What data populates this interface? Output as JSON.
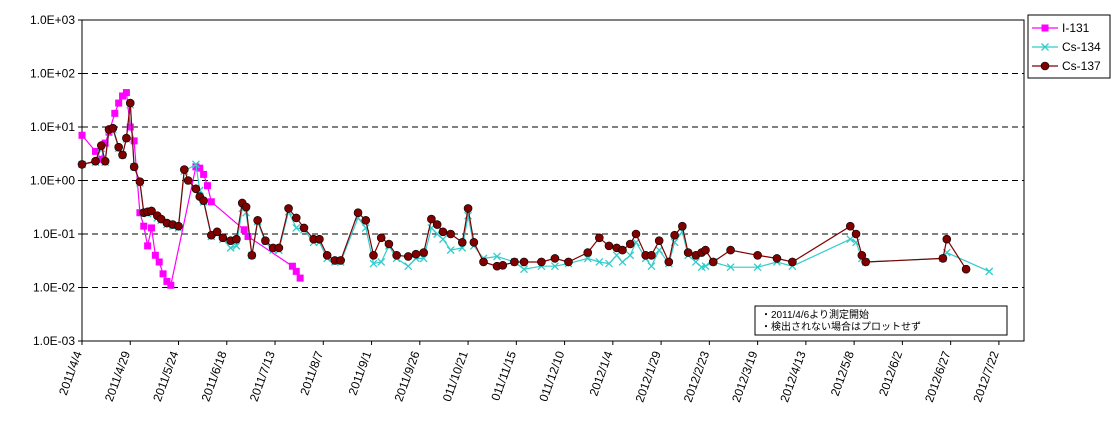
{
  "chart_data": {
    "type": "line",
    "title": "",
    "xlabel": "",
    "ylabel": "",
    "y_scale": "log",
    "ylim": [
      0.001,
      1000
    ],
    "xlim": [
      "2011-04-04",
      "2012-08-04"
    ],
    "y_tick_labels": [
      "1.0E+03",
      "1.0E+02",
      "1.0E+01",
      "1.0E+00",
      "1.0E-01",
      "1.0E-02",
      "1.0E-03"
    ],
    "y_tick_values": [
      1000,
      100,
      10,
      1,
      0.1,
      0.01,
      0.001
    ],
    "x_ticks": [
      {
        "date": "2011-04-04",
        "label": "2011/4/4"
      },
      {
        "date": "2011-04-29",
        "label": "2011/4/29"
      },
      {
        "date": "2011-05-24",
        "label": "2011/5/24"
      },
      {
        "date": "2011-06-18",
        "label": "2011/6/18"
      },
      {
        "date": "2011-07-13",
        "label": "2011/7/13"
      },
      {
        "date": "2011-08-07",
        "label": "2011/8/7"
      },
      {
        "date": "2011-09-01",
        "label": "2011/9/1"
      },
      {
        "date": "2011-09-26",
        "label": "2011/9/26"
      },
      {
        "date": "2011-10-21",
        "label": "011/10/21"
      },
      {
        "date": "2011-11-15",
        "label": "011/11/15"
      },
      {
        "date": "2011-12-10",
        "label": "011/12/10"
      },
      {
        "date": "2012-01-04",
        "label": "2012/1/4"
      },
      {
        "date": "2012-01-29",
        "label": "2012/1/29"
      },
      {
        "date": "2012-02-23",
        "label": "2012/2/23"
      },
      {
        "date": "2012-03-19",
        "label": "2012/3/19"
      },
      {
        "date": "2012-04-13",
        "label": "2012/4/13"
      },
      {
        "date": "2012-05-08",
        "label": "2012/5/8"
      },
      {
        "date": "2012-06-02",
        "label": "2012/6/2"
      },
      {
        "date": "2012-06-27",
        "label": "2012/6/27"
      },
      {
        "date": "2012-07-22",
        "label": "2012/7/22"
      }
    ],
    "grid": {
      "horizontal": true,
      "style": "dashed"
    },
    "legend": {
      "position": "right-top"
    },
    "annotations": [
      "・2011/4/6より測定開始",
      "・検出されない場合はプロットせず"
    ],
    "series": [
      {
        "name": "I-131",
        "color": "#ff00ff",
        "marker": "square",
        "points": [
          [
            "2011-04-04",
            7.0
          ],
          [
            "2011-04-11",
            3.5
          ],
          [
            "2011-04-14",
            2.5
          ],
          [
            "2011-04-16",
            5.0
          ],
          [
            "2011-04-18",
            8.0
          ],
          [
            "2011-04-21",
            18.0
          ],
          [
            "2011-04-23",
            28.0
          ],
          [
            "2011-04-25",
            38.0
          ],
          [
            "2011-04-27",
            44.0
          ],
          [
            "2011-04-29",
            10.0
          ],
          [
            "2011-05-01",
            5.5
          ],
          [
            "2011-05-04",
            0.25
          ],
          [
            "2011-05-06",
            0.14
          ],
          [
            "2011-05-08",
            0.06
          ],
          [
            "2011-05-10",
            0.13
          ],
          [
            "2011-05-12",
            0.04
          ],
          [
            "2011-05-14",
            0.03
          ],
          [
            "2011-05-16",
            0.018
          ],
          [
            "2011-05-18",
            0.013
          ],
          [
            "2011-05-20",
            0.011
          ],
          [
            "2011-06-02",
            1.8
          ],
          [
            "2011-06-04",
            1.7
          ],
          [
            "2011-06-06",
            1.3
          ],
          [
            "2011-06-08",
            0.8
          ],
          [
            "2011-06-10",
            0.4
          ],
          [
            "2011-06-27",
            0.12
          ],
          [
            "2011-06-29",
            0.09
          ],
          [
            "2011-07-22",
            0.025
          ],
          [
            "2011-07-24",
            0.02
          ],
          [
            "2011-07-26",
            0.015
          ]
        ]
      },
      {
        "name": "Cs-134",
        "color": "#33cccc",
        "marker": "x",
        "points": [
          [
            "2011-04-04",
            2.0
          ],
          [
            "2011-04-11",
            2.2
          ],
          [
            "2011-04-14",
            4.0
          ],
          [
            "2011-04-16",
            2.2
          ],
          [
            "2011-04-18",
            8.5
          ],
          [
            "2011-04-20",
            9.0
          ],
          [
            "2011-04-23",
            4.0
          ],
          [
            "2011-04-25",
            3.0
          ],
          [
            "2011-04-27",
            6.0
          ],
          [
            "2011-04-29",
            26.0
          ],
          [
            "2011-05-01",
            1.8
          ],
          [
            "2011-05-04",
            0.9
          ],
          [
            "2011-05-06",
            0.25
          ],
          [
            "2011-05-08",
            0.24
          ],
          [
            "2011-05-10",
            0.25
          ],
          [
            "2011-05-13",
            0.2
          ],
          [
            "2011-05-15",
            0.18
          ],
          [
            "2011-05-18",
            0.15
          ],
          [
            "2011-05-21",
            0.14
          ],
          [
            "2011-05-24",
            0.13
          ],
          [
            "2011-05-27",
            1.5
          ],
          [
            "2011-06-02",
            2.0
          ],
          [
            "2011-06-04",
            0.65
          ],
          [
            "2011-06-06",
            0.4
          ],
          [
            "2011-06-10",
            0.09
          ],
          [
            "2011-06-13",
            0.1
          ],
          [
            "2011-06-16",
            0.08
          ],
          [
            "2011-06-20",
            0.055
          ],
          [
            "2011-06-23",
            0.06
          ],
          [
            "2011-06-26",
            0.3
          ],
          [
            "2011-06-28",
            0.25
          ],
          [
            "2011-07-01",
            0.04
          ],
          [
            "2011-07-04",
            0.17
          ],
          [
            "2011-07-08",
            0.07
          ],
          [
            "2011-07-12",
            0.05
          ],
          [
            "2011-07-15",
            0.05
          ],
          [
            "2011-07-20",
            0.26
          ],
          [
            "2011-07-24",
            0.13
          ],
          [
            "2011-07-28",
            0.12
          ],
          [
            "2011-08-02",
            0.07
          ],
          [
            "2011-08-05",
            0.07
          ],
          [
            "2011-08-09",
            0.035
          ],
          [
            "2011-08-13",
            0.03
          ],
          [
            "2011-08-16",
            0.03
          ],
          [
            "2011-08-25",
            0.2
          ],
          [
            "2011-08-29",
            0.13
          ],
          [
            "2011-09-02",
            0.028
          ],
          [
            "2011-09-06",
            0.03
          ],
          [
            "2011-09-10",
            0.06
          ],
          [
            "2011-09-14",
            0.035
          ],
          [
            "2011-09-20",
            0.025
          ],
          [
            "2011-09-24",
            0.035
          ],
          [
            "2011-09-28",
            0.035
          ],
          [
            "2011-10-02",
            0.13
          ],
          [
            "2011-10-05",
            0.1
          ],
          [
            "2011-10-08",
            0.08
          ],
          [
            "2011-10-12",
            0.05
          ],
          [
            "2011-10-18",
            0.055
          ],
          [
            "2011-10-21",
            0.22
          ],
          [
            "2011-10-24",
            0.06
          ],
          [
            "2011-10-29",
            0.035
          ],
          [
            "2011-11-05",
            0.038
          ],
          [
            "2011-11-14",
            0.03
          ],
          [
            "2011-11-19",
            0.022
          ],
          [
            "2011-11-28",
            0.025
          ],
          [
            "2011-12-05",
            0.025
          ],
          [
            "2011-12-12",
            0.028
          ],
          [
            "2011-12-22",
            0.035
          ],
          [
            "2011-12-28",
            0.03
          ],
          [
            "2012-01-02",
            0.028
          ],
          [
            "2012-01-06",
            0.04
          ],
          [
            "2012-01-09",
            0.03
          ],
          [
            "2012-01-13",
            0.04
          ],
          [
            "2012-01-16",
            0.07
          ],
          [
            "2012-01-21",
            0.035
          ],
          [
            "2012-01-24",
            0.025
          ],
          [
            "2012-01-28",
            0.05
          ],
          [
            "2012-02-02",
            0.028
          ],
          [
            "2012-02-05",
            0.07
          ],
          [
            "2012-02-09",
            0.11
          ],
          [
            "2012-02-12",
            0.04
          ],
          [
            "2012-02-16",
            0.03
          ],
          [
            "2012-02-19",
            0.024
          ],
          [
            "2012-02-21",
            0.025
          ],
          [
            "2012-02-25",
            0.03
          ],
          [
            "2012-03-05",
            0.024
          ],
          [
            "2012-03-19",
            0.024
          ],
          [
            "2012-03-29",
            0.03
          ],
          [
            "2012-04-06",
            0.025
          ],
          [
            "2012-05-06",
            0.08
          ],
          [
            "2012-05-09",
            0.07
          ],
          [
            "2012-05-12",
            0.035
          ],
          [
            "2012-05-14",
            0.03
          ],
          [
            "2012-06-23",
            0.035
          ],
          [
            "2012-06-25",
            0.045
          ],
          [
            "2012-07-17",
            0.02
          ]
        ]
      },
      {
        "name": "Cs-137",
        "color": "#800000",
        "marker": "circle",
        "points": [
          [
            "2011-04-04",
            2.0
          ],
          [
            "2011-04-11",
            2.3
          ],
          [
            "2011-04-14",
            4.5
          ],
          [
            "2011-04-16",
            2.3
          ],
          [
            "2011-04-18",
            9.0
          ],
          [
            "2011-04-20",
            9.5
          ],
          [
            "2011-04-23",
            4.2
          ],
          [
            "2011-04-25",
            3.0
          ],
          [
            "2011-04-27",
            6.2
          ],
          [
            "2011-04-29",
            28.0
          ],
          [
            "2011-05-01",
            1.8
          ],
          [
            "2011-05-04",
            0.95
          ],
          [
            "2011-05-06",
            0.25
          ],
          [
            "2011-05-08",
            0.26
          ],
          [
            "2011-05-10",
            0.27
          ],
          [
            "2011-05-13",
            0.22
          ],
          [
            "2011-05-15",
            0.19
          ],
          [
            "2011-05-18",
            0.16
          ],
          [
            "2011-05-21",
            0.15
          ],
          [
            "2011-05-24",
            0.14
          ],
          [
            "2011-05-27",
            1.6
          ],
          [
            "2011-05-29",
            1.0
          ],
          [
            "2011-06-02",
            0.7
          ],
          [
            "2011-06-04",
            0.5
          ],
          [
            "2011-06-06",
            0.42
          ],
          [
            "2011-06-10",
            0.095
          ],
          [
            "2011-06-13",
            0.11
          ],
          [
            "2011-06-16",
            0.085
          ],
          [
            "2011-06-20",
            0.075
          ],
          [
            "2011-06-23",
            0.08
          ],
          [
            "2011-06-26",
            0.38
          ],
          [
            "2011-06-28",
            0.32
          ],
          [
            "2011-07-01",
            0.04
          ],
          [
            "2011-07-04",
            0.18
          ],
          [
            "2011-07-08",
            0.075
          ],
          [
            "2011-07-12",
            0.055
          ],
          [
            "2011-07-15",
            0.055
          ],
          [
            "2011-07-20",
            0.3
          ],
          [
            "2011-07-24",
            0.2
          ],
          [
            "2011-07-28",
            0.13
          ],
          [
            "2011-08-02",
            0.08
          ],
          [
            "2011-08-05",
            0.08
          ],
          [
            "2011-08-09",
            0.04
          ],
          [
            "2011-08-13",
            0.032
          ],
          [
            "2011-08-16",
            0.032
          ],
          [
            "2011-08-25",
            0.25
          ],
          [
            "2011-08-29",
            0.18
          ],
          [
            "2011-09-02",
            0.04
          ],
          [
            "2011-09-06",
            0.085
          ],
          [
            "2011-09-10",
            0.065
          ],
          [
            "2011-09-14",
            0.04
          ],
          [
            "2011-09-20",
            0.038
          ],
          [
            "2011-09-24",
            0.042
          ],
          [
            "2011-09-28",
            0.045
          ],
          [
            "2011-10-02",
            0.19
          ],
          [
            "2011-10-05",
            0.15
          ],
          [
            "2011-10-08",
            0.11
          ],
          [
            "2011-10-12",
            0.1
          ],
          [
            "2011-10-18",
            0.07
          ],
          [
            "2011-10-21",
            0.3
          ],
          [
            "2011-10-24",
            0.07
          ],
          [
            "2011-10-29",
            0.03
          ],
          [
            "2011-11-05",
            0.025
          ],
          [
            "2011-11-08",
            0.026
          ],
          [
            "2011-11-14",
            0.03
          ],
          [
            "2011-11-19",
            0.03
          ],
          [
            "2011-11-28",
            0.03
          ],
          [
            "2011-12-05",
            0.035
          ],
          [
            "2011-12-12",
            0.03
          ],
          [
            "2011-12-22",
            0.045
          ],
          [
            "2011-12-28",
            0.085
          ],
          [
            "2012-01-02",
            0.06
          ],
          [
            "2012-01-06",
            0.055
          ],
          [
            "2012-01-09",
            0.05
          ],
          [
            "2012-01-13",
            0.065
          ],
          [
            "2012-01-16",
            0.1
          ],
          [
            "2012-01-21",
            0.04
          ],
          [
            "2012-01-24",
            0.04
          ],
          [
            "2012-01-28",
            0.075
          ],
          [
            "2012-02-02",
            0.03
          ],
          [
            "2012-02-05",
            0.095
          ],
          [
            "2012-02-09",
            0.14
          ],
          [
            "2012-02-12",
            0.045
          ],
          [
            "2012-02-16",
            0.04
          ],
          [
            "2012-02-19",
            0.045
          ],
          [
            "2012-02-21",
            0.05
          ],
          [
            "2012-02-25",
            0.03
          ],
          [
            "2012-03-05",
            0.05
          ],
          [
            "2012-03-19",
            0.04
          ],
          [
            "2012-03-29",
            0.035
          ],
          [
            "2012-04-06",
            0.03
          ],
          [
            "2012-05-06",
            0.14
          ],
          [
            "2012-05-09",
            0.1
          ],
          [
            "2012-05-12",
            0.04
          ],
          [
            "2012-05-14",
            0.03
          ],
          [
            "2012-06-23",
            0.035
          ],
          [
            "2012-06-25",
            0.08
          ],
          [
            "2012-07-05",
            0.022
          ]
        ]
      }
    ]
  }
}
